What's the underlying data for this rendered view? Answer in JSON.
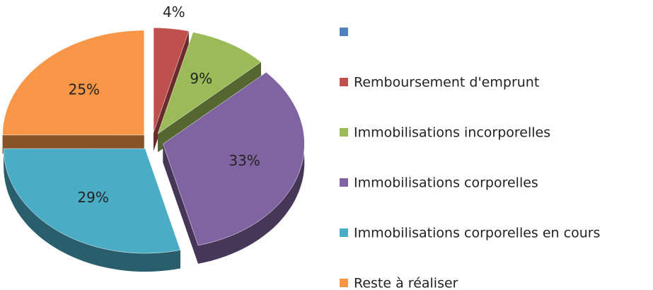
{
  "chart_data": {
    "type": "pie",
    "categories": [
      null,
      "Remboursement d'emprunt",
      "Immobilisations incorporelles",
      "Immobilisations corporelles",
      "Immobilisations corporelles en cours",
      "Reste à réaliser"
    ],
    "values": [
      0,
      4,
      9,
      33,
      29,
      25
    ],
    "value_labels": [
      null,
      "4%",
      "9%",
      "33%",
      "29%",
      "25%"
    ],
    "colors": [
      "#4f81bd",
      "#c0504d",
      "#9bbb59",
      "#8064a2",
      "#4bacc6",
      "#f79646"
    ],
    "legend": "right"
  }
}
